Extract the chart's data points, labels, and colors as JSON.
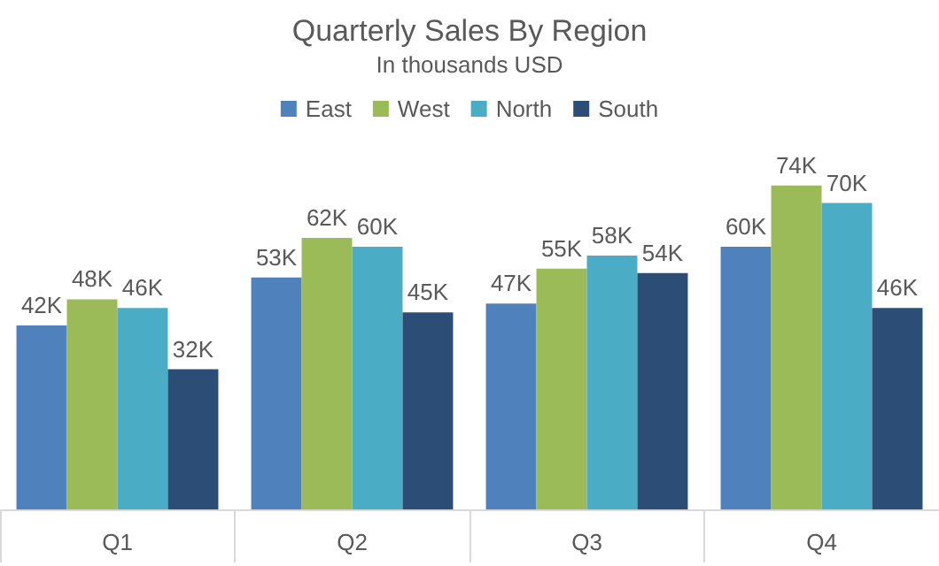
{
  "chart_data": {
    "type": "bar",
    "title": "Quarterly Sales By Region",
    "subtitle": "In thousands USD",
    "categories": [
      "Q1",
      "Q2",
      "Q3",
      "Q4"
    ],
    "series": [
      {
        "name": "East",
        "color": "#4f81bd",
        "values": [
          42,
          53,
          47,
          60
        ],
        "value_labels": [
          "42K",
          "53K",
          "47K",
          "60K"
        ]
      },
      {
        "name": "West",
        "color": "#9bbb59",
        "values": [
          48,
          62,
          55,
          74
        ],
        "value_labels": [
          "48K",
          "62K",
          "55K",
          "74K"
        ]
      },
      {
        "name": "North",
        "color": "#4bacc6",
        "values": [
          46,
          60,
          58,
          70
        ],
        "value_labels": [
          "46K",
          "60K",
          "58K",
          "70K"
        ]
      },
      {
        "name": "South",
        "color": "#2c4d75",
        "values": [
          32,
          45,
          54,
          46
        ],
        "value_labels": [
          "32K",
          "45K",
          "54K",
          "46K"
        ]
      }
    ],
    "legend": "top"
  }
}
